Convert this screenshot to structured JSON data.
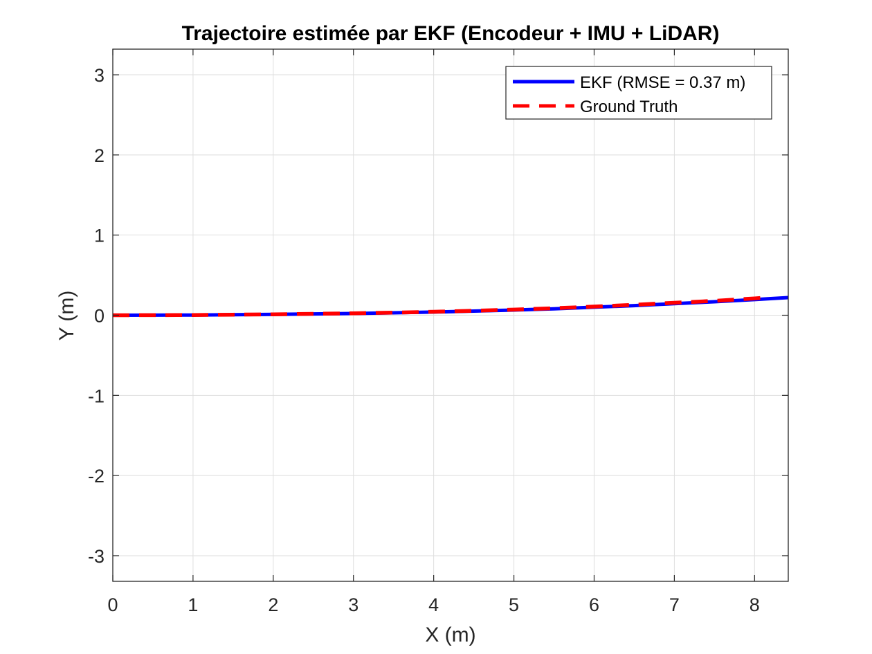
{
  "chart_data": {
    "type": "line",
    "title": "Trajectoire estimée par EKF (Encodeur + IMU + LiDAR)",
    "xlabel": "X (m)",
    "ylabel": "Y (m)",
    "xlim": [
      0,
      8.42
    ],
    "ylim": [
      -3.32,
      3.32
    ],
    "xticks": [
      0,
      1,
      2,
      3,
      4,
      5,
      6,
      7,
      8
    ],
    "yticks": [
      -3,
      -2,
      -1,
      0,
      1,
      2,
      3
    ],
    "xtick_labels": [
      "0",
      "1",
      "2",
      "3",
      "4",
      "5",
      "6",
      "7",
      "8"
    ],
    "ytick_labels": [
      "-3",
      "-2",
      "-1",
      "0",
      "1",
      "2",
      "3"
    ],
    "grid": true,
    "legend_position": "top-right",
    "series": [
      {
        "name": "EKF (RMSE = 0.37 m)",
        "color": "#0000ff",
        "line_style": "solid",
        "x": [
          0,
          0.5,
          1,
          1.5,
          2,
          2.5,
          3,
          3.5,
          4,
          4.5,
          5,
          5.5,
          6,
          6.5,
          7,
          7.5,
          8,
          8.42
        ],
        "y": [
          0,
          0.001,
          0.003,
          0.007,
          0.01,
          0.016,
          0.022,
          0.03,
          0.04,
          0.052,
          0.065,
          0.08,
          0.1,
          0.12,
          0.145,
          0.168,
          0.195,
          0.22
        ]
      },
      {
        "name": "Ground Truth",
        "color": "#ff0000",
        "line_style": "dashed",
        "x": [
          0,
          0.5,
          1,
          1.5,
          2,
          2.5,
          3,
          3.5,
          4,
          4.5,
          5,
          5.5,
          6,
          6.5,
          7,
          7.5,
          8,
          8.1
        ],
        "y": [
          0,
          0.001,
          0.003,
          0.007,
          0.011,
          0.017,
          0.024,
          0.033,
          0.043,
          0.056,
          0.07,
          0.087,
          0.108,
          0.13,
          0.155,
          0.18,
          0.21,
          0.218
        ]
      }
    ]
  }
}
